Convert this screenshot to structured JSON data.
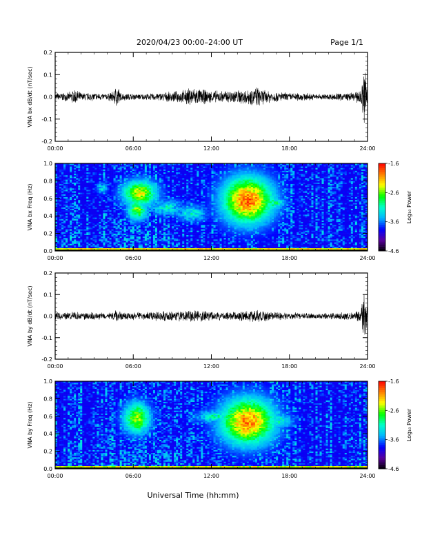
{
  "header": {
    "title": "2020/04/23  00:00–24:00 UT",
    "page": "Page 1/1"
  },
  "x_axis": {
    "label": "Universal Time (hh:mm)",
    "range_hours": [
      0,
      24
    ],
    "ticks": [
      "00:00",
      "06:00",
      "12:00",
      "18:00",
      "24:00"
    ],
    "tick_hours": [
      0,
      6,
      12,
      18,
      24
    ]
  },
  "colorbar": {
    "label": "Log₁₀ Power",
    "range": [
      -4.6,
      -1.6
    ],
    "ticks": [
      "-1.6",
      "-2.6",
      "-3.6",
      "-4.6"
    ],
    "tick_values": [
      -1.6,
      -2.6,
      -3.6,
      -4.6
    ],
    "colors": [
      "#000000",
      "#5a009e",
      "#0000ff",
      "#00b4ff",
      "#00ffcc",
      "#00ff00",
      "#ffff00",
      "#ff8000",
      "#ff0000"
    ]
  },
  "chart_data": [
    {
      "type": "line",
      "ylabel": "VNA bx dB/dt (nT/sec)",
      "ylim": [
        -0.2,
        0.2
      ],
      "yticks": [
        "0.2",
        "0.1",
        "0.0",
        "-0.1",
        "-0.2"
      ],
      "ytick_values": [
        0.2,
        0.1,
        0.0,
        -0.1,
        -0.2
      ],
      "envelope": {
        "x_hours": [
          0,
          1,
          1.5,
          2,
          3,
          4,
          4.5,
          4.8,
          5,
          6,
          7,
          8,
          9,
          10,
          10.5,
          11,
          12,
          13,
          14,
          15,
          15.5,
          16,
          17,
          18,
          19,
          20,
          21,
          22,
          23,
          23.5,
          23.7,
          23.8,
          24
        ],
        "amplitude": [
          0.02,
          0.02,
          0.04,
          0.02,
          0.02,
          0.015,
          0.03,
          0.07,
          0.02,
          0.015,
          0.015,
          0.02,
          0.025,
          0.035,
          0.05,
          0.04,
          0.03,
          0.03,
          0.035,
          0.04,
          0.05,
          0.035,
          0.025,
          0.02,
          0.02,
          0.015,
          0.015,
          0.02,
          0.02,
          0.04,
          0.12,
          0.2,
          0.05
        ]
      }
    },
    {
      "type": "heatmap",
      "ylabel": "VNA bx Freq (Hz)",
      "ylim": [
        0,
        1.0
      ],
      "yticks": [
        "1.0",
        "0.8",
        "0.6",
        "0.4",
        "0.2",
        "0.0"
      ],
      "ytick_values": [
        1.0,
        0.8,
        0.6,
        0.4,
        0.2,
        0.0
      ],
      "background_log_power": -3.9,
      "low_freq_band": {
        "freq_max": 0.04,
        "log_power": -2.3
      },
      "enhancements": [
        {
          "t_hours": 6.5,
          "f_hz": 0.66,
          "dt": 0.9,
          "df": 0.1,
          "peak": -2.4
        },
        {
          "t_hours": 6.3,
          "f_hz": 0.47,
          "dt": 0.5,
          "df": 0.08,
          "peak": -2.6
        },
        {
          "t_hours": 8.5,
          "f_hz": 0.5,
          "dt": 0.9,
          "df": 0.06,
          "peak": -3.2
        },
        {
          "t_hours": 10.5,
          "f_hz": 0.43,
          "dt": 0.8,
          "df": 0.06,
          "peak": -3.2
        },
        {
          "t_hours": 14.8,
          "f_hz": 0.58,
          "dt": 1.3,
          "df": 0.18,
          "peak": -1.9
        },
        {
          "t_hours": 16.8,
          "f_hz": 0.55,
          "dt": 0.6,
          "df": 0.05,
          "peak": -3.0
        },
        {
          "t_hours": 3.6,
          "f_hz": 0.72,
          "dt": 0.3,
          "df": 0.04,
          "peak": -3.3
        }
      ]
    },
    {
      "type": "line",
      "ylabel": "VNA by dB/dt (nT/sec)",
      "ylim": [
        -0.2,
        0.2
      ],
      "yticks": [
        "0.2",
        "0.1",
        "0.0",
        "-0.1",
        "-0.2"
      ],
      "ytick_values": [
        0.2,
        0.1,
        0.0,
        -0.1,
        -0.2
      ],
      "envelope": {
        "x_hours": [
          0,
          1,
          2,
          3,
          4,
          4.5,
          4.8,
          5,
          6,
          7,
          8,
          9,
          10,
          11,
          12,
          13,
          14,
          15,
          16,
          17,
          18,
          19,
          20,
          21,
          22,
          23,
          23.5,
          23.8,
          24
        ],
        "amplitude": [
          0.02,
          0.02,
          0.02,
          0.02,
          0.015,
          0.025,
          0.045,
          0.02,
          0.02,
          0.02,
          0.025,
          0.025,
          0.03,
          0.03,
          0.025,
          0.02,
          0.025,
          0.03,
          0.03,
          0.02,
          0.02,
          0.015,
          0.015,
          0.015,
          0.02,
          0.02,
          0.04,
          0.13,
          0.05
        ]
      }
    },
    {
      "type": "heatmap",
      "ylabel": "VNA by Freq (Hz)",
      "ylim": [
        0,
        1.0
      ],
      "yticks": [
        "1.0",
        "0.8",
        "0.6",
        "0.4",
        "0.2",
        "0.0"
      ],
      "ytick_values": [
        1.0,
        0.8,
        0.6,
        0.4,
        0.2,
        0.0
      ],
      "background_log_power": -3.9,
      "low_freq_band": {
        "freq_max": 0.04,
        "log_power": -2.4
      },
      "enhancements": [
        {
          "t_hours": 6.3,
          "f_hz": 0.58,
          "dt": 0.7,
          "df": 0.12,
          "peak": -2.5
        },
        {
          "t_hours": 14.8,
          "f_hz": 0.54,
          "dt": 1.4,
          "df": 0.18,
          "peak": -2.0
        },
        {
          "t_hours": 12.3,
          "f_hz": 0.6,
          "dt": 1.0,
          "df": 0.05,
          "peak": -3.1
        },
        {
          "t_hours": 17.3,
          "f_hz": 0.55,
          "dt": 0.7,
          "df": 0.05,
          "peak": -3.1
        }
      ]
    }
  ]
}
